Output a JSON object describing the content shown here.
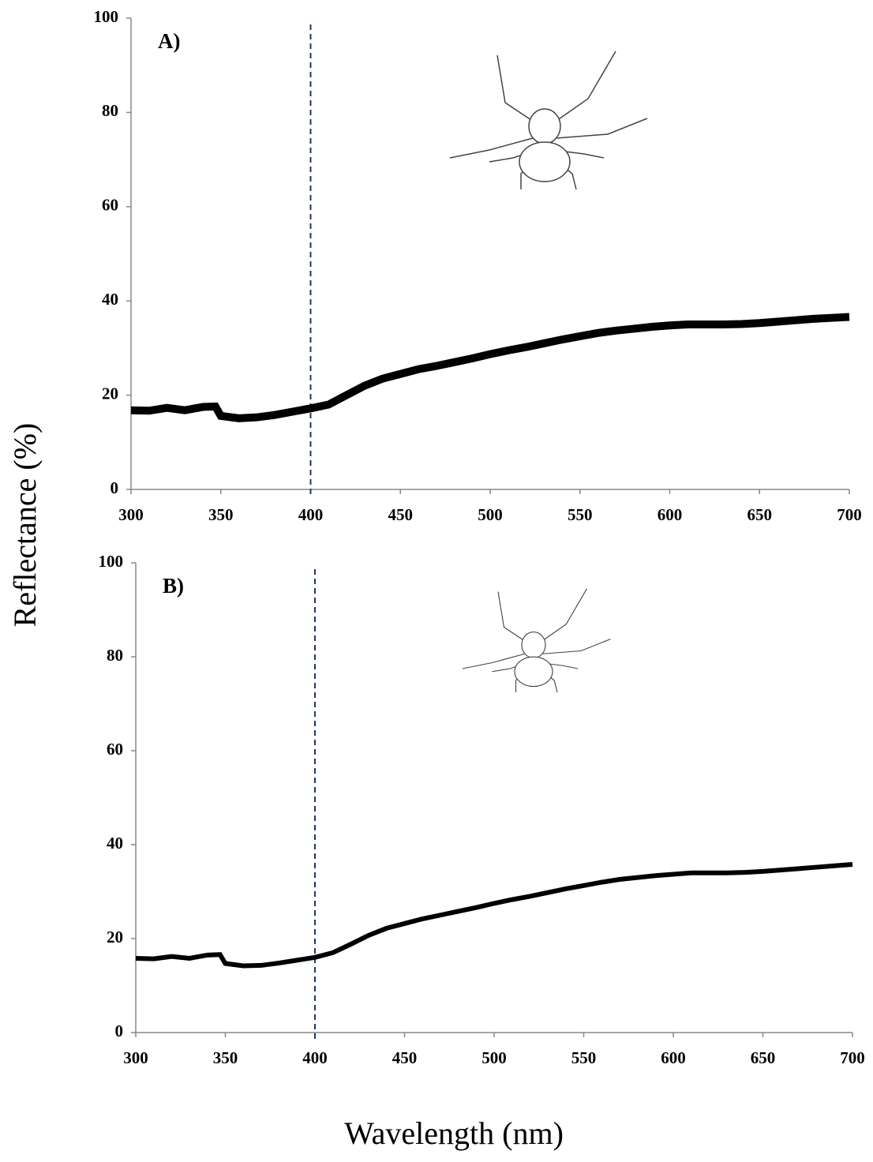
{
  "chart_data": [
    {
      "type": "line",
      "title": "A)",
      "ylabel": "Reflectance (%)",
      "x": [
        300,
        310,
        320,
        330,
        340,
        347,
        350,
        360,
        370,
        380,
        390,
        400,
        410,
        420,
        430,
        440,
        450,
        460,
        470,
        480,
        490,
        500,
        510,
        520,
        530,
        540,
        550,
        560,
        570,
        580,
        590,
        600,
        610,
        620,
        630,
        640,
        650,
        660,
        670,
        680,
        690,
        700
      ],
      "values": [
        16.8,
        16.7,
        17.3,
        16.8,
        17.5,
        17.6,
        15.6,
        15.1,
        15.3,
        15.8,
        16.5,
        17.2,
        18,
        20,
        22,
        23.5,
        24.5,
        25.5,
        26.2,
        27,
        27.8,
        28.7,
        29.5,
        30.2,
        31,
        31.8,
        32.5,
        33.2,
        33.7,
        34.1,
        34.5,
        34.8,
        35,
        35,
        35,
        35.1,
        35.3,
        35.6,
        35.9,
        36.2,
        36.4,
        36.6
      ],
      "color": "#000000",
      "reference_x": 400,
      "reference_color": "#1f3864",
      "xlim": [
        300,
        700
      ],
      "xticks": [
        300,
        350,
        400,
        450,
        500,
        550,
        600,
        650,
        700
      ],
      "ylim": [
        0,
        100
      ],
      "yticks": [
        0,
        20,
        40,
        60,
        80,
        100
      ]
    },
    {
      "type": "line",
      "title": "B)",
      "xlabel": "Wavelength (nm)",
      "x": [
        300,
        310,
        320,
        330,
        340,
        347,
        350,
        360,
        370,
        380,
        390,
        400,
        410,
        420,
        430,
        440,
        450,
        460,
        470,
        480,
        490,
        500,
        510,
        520,
        530,
        540,
        550,
        560,
        570,
        580,
        590,
        600,
        610,
        620,
        630,
        640,
        650,
        660,
        670,
        680,
        690,
        700
      ],
      "values": [
        15.8,
        15.7,
        16.2,
        15.8,
        16.5,
        16.6,
        14.7,
        14.2,
        14.3,
        14.8,
        15.4,
        16,
        17,
        18.8,
        20.7,
        22.2,
        23.2,
        24.2,
        25,
        25.8,
        26.6,
        27.5,
        28.3,
        29,
        29.8,
        30.6,
        31.3,
        32,
        32.6,
        33,
        33.4,
        33.7,
        34,
        34,
        34,
        34.1,
        34.3,
        34.6,
        34.9,
        35.2,
        35.5,
        35.8
      ],
      "color": "#000000",
      "reference_x": 400,
      "reference_color": "#1f3864",
      "xlim": [
        300,
        700
      ],
      "xticks": [
        300,
        350,
        400,
        450,
        500,
        550,
        600,
        650,
        700
      ],
      "ylim": [
        0,
        100
      ],
      "yticks": [
        0,
        20,
        40,
        60,
        80,
        100
      ]
    }
  ]
}
